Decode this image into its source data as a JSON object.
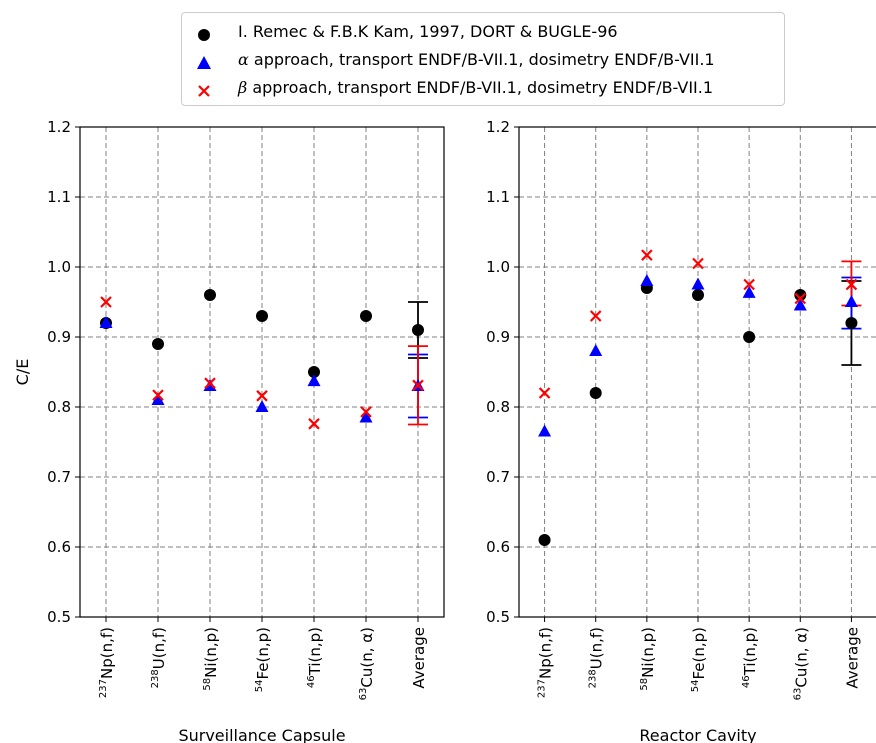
{
  "legend": [
    {
      "label": "I. Remec & F.B.K Kam, 1997, DORT & BUGLE-96",
      "marker": "circle",
      "color": "#000000"
    },
    {
      "label_greek": "α",
      "label": " approach, transport ENDF/B-VII.1, dosimetry ENDF/B-VII.1",
      "marker": "triangle",
      "color": "#0000ff"
    },
    {
      "label_greek": "β",
      "label": " approach, transport ENDF/B-VII.1, dosimetry ENDF/B-VII.1",
      "marker": "x",
      "color": "#ff0000"
    }
  ],
  "chart_data": [
    {
      "type": "scatter",
      "xlabel": "Surveillance Capsule",
      "ylabel": "C/E",
      "ylim": [
        0.5,
        1.2
      ],
      "yticks": [
        "0.5",
        "0.6",
        "0.7",
        "0.8",
        "0.9",
        "1.0",
        "1.1",
        "1.2"
      ],
      "grid": true,
      "categories": [
        {
          "sup": "237",
          "base": "Np(n,f)"
        },
        {
          "sup": "238",
          "base": "U(n,f)"
        },
        {
          "sup": "58",
          "base": "Ni(n,p)"
        },
        {
          "sup": "54",
          "base": "Fe(n,p)"
        },
        {
          "sup": "46",
          "base": "Ti(n,p)"
        },
        {
          "sup": "63",
          "base": "Cu(n, α)"
        },
        {
          "sup": "",
          "base": "Average"
        }
      ],
      "series": [
        {
          "marker": "circle",
          "color": "#000000",
          "values": [
            0.92,
            0.89,
            0.96,
            0.93,
            0.85,
            0.93,
            0.91
          ],
          "avg_error": [
            0.87,
            0.95
          ]
        },
        {
          "marker": "triangle",
          "color": "#0000ff",
          "values": [
            0.92,
            0.81,
            0.83,
            0.8,
            0.837,
            0.785,
            0.83
          ],
          "avg_error": [
            0.785,
            0.875
          ]
        },
        {
          "marker": "x",
          "color": "#ff0000",
          "values": [
            0.95,
            0.817,
            0.834,
            0.816,
            0.776,
            0.793,
            0.831
          ],
          "avg_error": [
            0.775,
            0.887
          ]
        }
      ]
    },
    {
      "type": "scatter",
      "xlabel": "Reactor Cavity",
      "ylabel": "",
      "ylim": [
        0.5,
        1.2
      ],
      "yticks": [
        "0.5",
        "0.6",
        "0.7",
        "0.8",
        "0.9",
        "1.0",
        "1.1",
        "1.2"
      ],
      "grid": true,
      "categories": [
        {
          "sup": "237",
          "base": "Np(n,f)"
        },
        {
          "sup": "238",
          "base": "U(n,f)"
        },
        {
          "sup": "58",
          "base": "Ni(n,p)"
        },
        {
          "sup": "54",
          "base": "Fe(n,p)"
        },
        {
          "sup": "46",
          "base": "Ti(n,p)"
        },
        {
          "sup": "63",
          "base": "Cu(n, α)"
        },
        {
          "sup": "",
          "base": "Average"
        }
      ],
      "series": [
        {
          "marker": "circle",
          "color": "#000000",
          "values": [
            0.61,
            0.82,
            0.97,
            0.96,
            0.9,
            0.96,
            0.92
          ],
          "avg_error": [
            0.86,
            0.98
          ]
        },
        {
          "marker": "triangle",
          "color": "#0000ff",
          "values": [
            0.765,
            0.88,
            0.98,
            0.975,
            0.963,
            0.945,
            0.95
          ],
          "avg_error": [
            0.912,
            0.985
          ]
        },
        {
          "marker": "x",
          "color": "#ff0000",
          "values": [
            0.82,
            0.93,
            1.017,
            1.005,
            0.975,
            0.955,
            0.975
          ],
          "avg_error": [
            0.945,
            1.008
          ]
        }
      ]
    }
  ]
}
